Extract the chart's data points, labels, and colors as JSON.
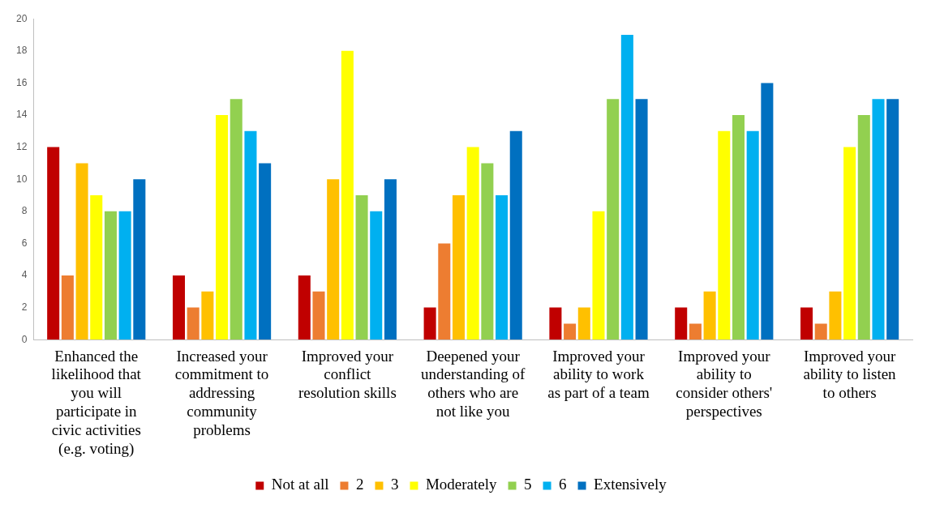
{
  "chart_data": {
    "type": "bar",
    "categories": [
      "Enhanced the likelihood that you will participate in civic activities (e.g. voting)",
      "Increased your commitment to addressing community problems",
      "Improved your conflict resolution skills",
      "Deepened your understanding of others who are not like you",
      "Improved your ability to work as part of a team",
      "Improved your ability to consider others' perspectives",
      "Improved your ability to listen to others"
    ],
    "series": [
      {
        "name": "Not at all",
        "color": "#c00000",
        "values": [
          12,
          4,
          4,
          2,
          2,
          2,
          2
        ]
      },
      {
        "name": "2",
        "color": "#ed7d31",
        "values": [
          4,
          2,
          3,
          6,
          1,
          1,
          1
        ]
      },
      {
        "name": "3",
        "color": "#ffc000",
        "values": [
          11,
          3,
          10,
          9,
          2,
          3,
          3
        ]
      },
      {
        "name": "Moderately",
        "color": "#ffff00",
        "values": [
          9,
          14,
          18,
          12,
          8,
          13,
          12
        ]
      },
      {
        "name": "5",
        "color": "#92d050",
        "values": [
          8,
          15,
          9,
          11,
          15,
          14,
          14
        ]
      },
      {
        "name": "6",
        "color": "#00b0f0",
        "values": [
          8,
          13,
          8,
          9,
          19,
          13,
          15
        ]
      },
      {
        "name": "Extensively",
        "color": "#0070c0",
        "values": [
          10,
          11,
          10,
          13,
          15,
          16,
          15
        ]
      }
    ],
    "ylim": [
      0,
      20
    ],
    "yticks": [
      0,
      2,
      4,
      6,
      8,
      10,
      12,
      14,
      16,
      18,
      20
    ],
    "grid": false,
    "legend": "bottom"
  }
}
